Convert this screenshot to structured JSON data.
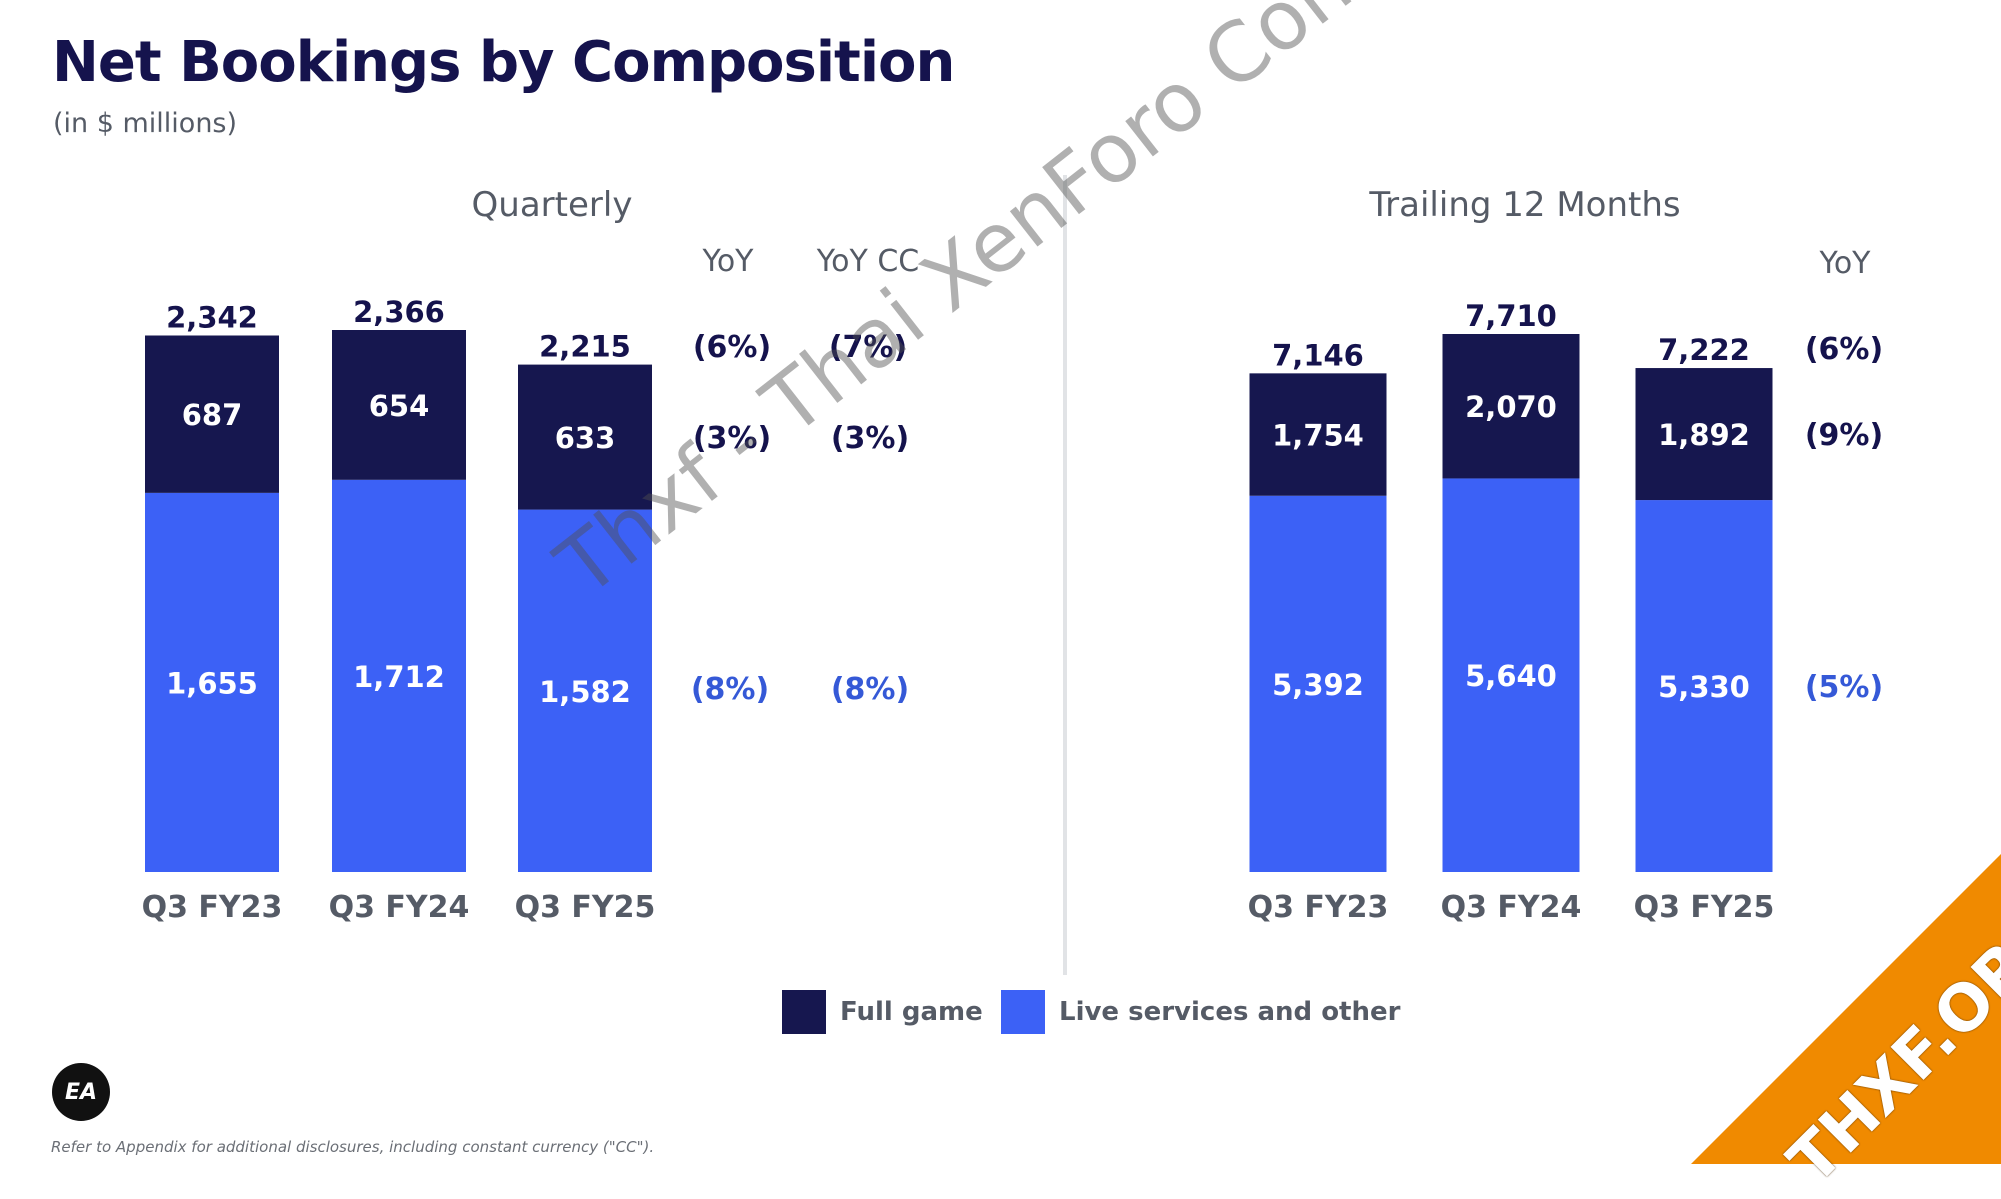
{
  "title": "Net Bookings by Composition",
  "subtitle": "(in $ millions)",
  "colors": {
    "full_game": "#16174f",
    "live_services": "#3c61f6",
    "yoy_full": "#15134d",
    "yoy_live": "#3559d7"
  },
  "chart_data": [
    {
      "type": "bar",
      "stacked": true,
      "title": "Quarterly",
      "categories": [
        "Q3 FY23",
        "Q3 FY24",
        "Q3 FY25"
      ],
      "totals": [
        "2,342",
        "2,366",
        "2,215"
      ],
      "series": [
        {
          "name": "Live services and other",
          "values": [
            1655,
            1712,
            1582
          ],
          "labels": [
            "1,655",
            "1,712",
            "1,582"
          ]
        },
        {
          "name": "Full game",
          "values": [
            687,
            654,
            633
          ],
          "labels": [
            "687",
            "654",
            "633"
          ]
        }
      ],
      "yoy_columns": [
        {
          "header": "YoY",
          "total": "(6%)",
          "full_game": "(3%)",
          "live_services": "(8%)"
        },
        {
          "header": "YoY CC",
          "total": "(7%)",
          "full_game": "(3%)",
          "live_services": "(8%)"
        }
      ]
    },
    {
      "type": "bar",
      "stacked": true,
      "title": "Trailing 12 Months",
      "categories": [
        "Q3 FY23",
        "Q3 FY24",
        "Q3 FY25"
      ],
      "totals": [
        "7,146",
        "7,710",
        "7,222"
      ],
      "series": [
        {
          "name": "Live services and other",
          "values": [
            5392,
            5640,
            5330
          ],
          "labels": [
            "5,392",
            "5,640",
            "5,330"
          ]
        },
        {
          "name": "Full game",
          "values": [
            1754,
            2070,
            1892
          ],
          "labels": [
            "1,754",
            "2,070",
            "1,892"
          ]
        }
      ],
      "yoy_columns": [
        {
          "header": "YoY",
          "total": "(6%)",
          "full_game": "(9%)",
          "live_services": "(5%)"
        }
      ]
    }
  ],
  "legend": {
    "full_game": "Full game",
    "live_services": "Live services and other"
  },
  "logo_text": "EA",
  "footnote": "Refer to Appendix for additional disclosures, including constant currency (\"CC\").",
  "watermark": "Thxf - Thai XenForo Community",
  "corner_badge": "THXF.ORG"
}
